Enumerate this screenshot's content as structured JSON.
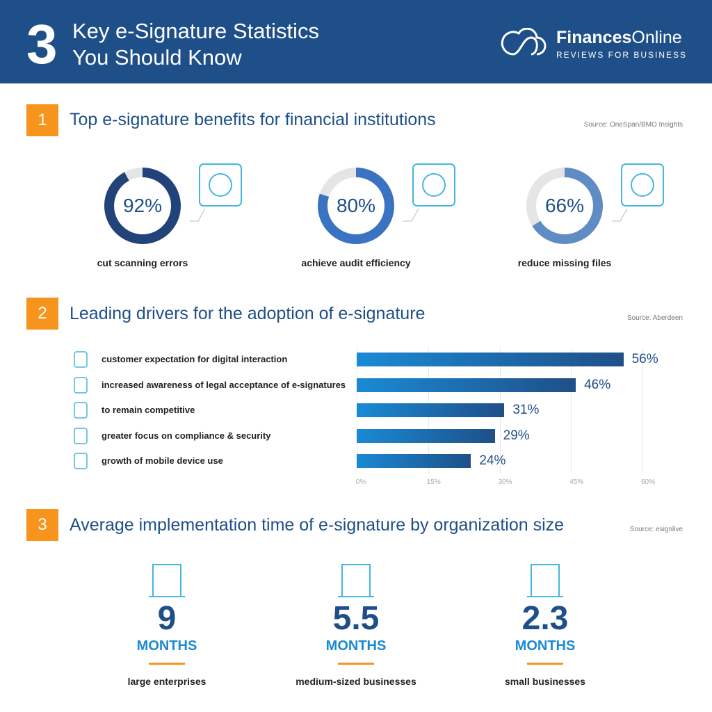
{
  "header": {
    "number": "3",
    "title_line1": "Key e-Signature Statistics",
    "title_line2": "You Should Know"
  },
  "logo": {
    "name_bold": "Finances",
    "name_light": "Online",
    "tagline": "REVIEWS FOR BUSINESS"
  },
  "section1": {
    "number": "1",
    "title": "Top e-signature benefits for financial institutions",
    "source": "Source: OneSpan/BMO Insights",
    "stats": [
      {
        "value": 92,
        "text": "92%",
        "label": "cut scanning errors",
        "color": "#22427a",
        "icon": "fingerprint-icon"
      },
      {
        "value": 80,
        "text": "80%",
        "label": "achieve audit efficiency",
        "color": "#3a73c2",
        "icon": "coins-magnifier-icon"
      },
      {
        "value": 66,
        "text": "66%",
        "label": "reduce missing files",
        "color": "#5f8cc4",
        "icon": "document-x-icon"
      }
    ]
  },
  "section2": {
    "number": "2",
    "title": "Leading drivers for the adoption of e-signature",
    "source": "Source: Aberdeen"
  },
  "chart_data": {
    "type": "bar",
    "orientation": "horizontal",
    "categories": [
      "customer expectation for digital interaction",
      "increased awareness of legal acceptance of e-signatures",
      "to remain competitive",
      "greater focus on compliance & security",
      "growth of mobile device use"
    ],
    "values": [
      56,
      46,
      31,
      29,
      24
    ],
    "value_labels": [
      "56%",
      "46%",
      "31%",
      "29%",
      "24%"
    ],
    "xlim": [
      0,
      60
    ],
    "ticks": [
      "0%",
      "15%",
      "30%",
      "45%",
      "60%"
    ],
    "tick_values": [
      0,
      15,
      30,
      45,
      60
    ],
    "grid": true,
    "icons": [
      "customer-chat-icon",
      "gavel-icon",
      "trophy-podium-icon",
      "shield-check-icon",
      "mobile-phone-icon"
    ],
    "colors": [
      "#1a8ad4",
      "#1f4f88"
    ]
  },
  "section3": {
    "number": "3",
    "title": "Average implementation time of e-signature by organization size",
    "source": "Source: esignlive",
    "items": [
      {
        "value": "9",
        "unit": "MONTHS",
        "label": "large enterprises",
        "icon": "office-building-icon"
      },
      {
        "value": "5.5",
        "unit": "MONTHS",
        "label": "medium-sized businesses",
        "icon": "presentation-team-icon"
      },
      {
        "value": "2.3",
        "unit": "MONTHS",
        "label": "small businesses",
        "icon": "desk-worker-icon"
      }
    ]
  }
}
